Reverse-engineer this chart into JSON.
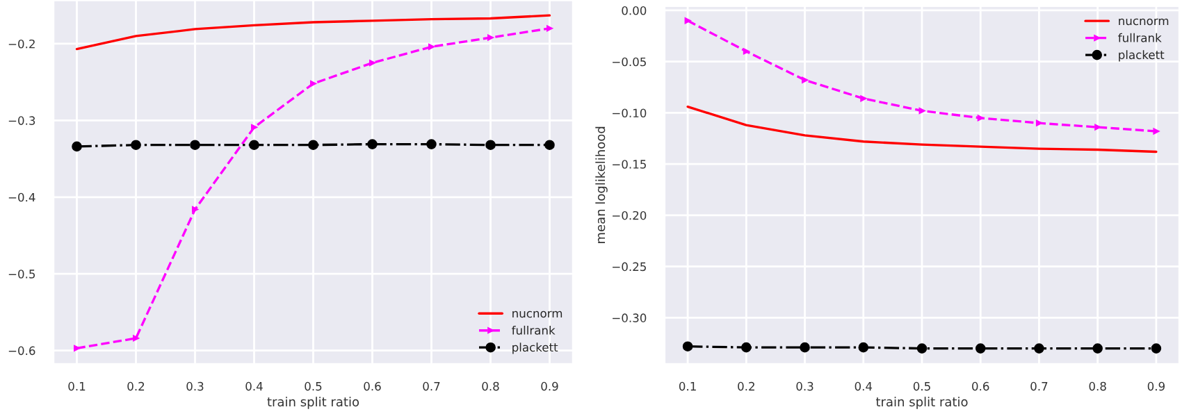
{
  "chart_data": [
    {
      "type": "line",
      "xlabel": "train split ratio",
      "x": [
        0.1,
        0.2,
        0.3,
        0.4,
        0.5,
        0.6,
        0.7,
        0.8,
        0.9
      ],
      "xlim": [
        0.06,
        0.94
      ],
      "xticks": [
        0.1,
        0.2,
        0.3,
        0.4,
        0.5,
        0.6,
        0.7,
        0.8,
        0.9
      ],
      "ylim": [
        -0.618,
        -0.143
      ],
      "yticks": [
        {
          "value": -0.6,
          "label": "−0.6"
        },
        {
          "value": -0.5,
          "label": "−0.5"
        },
        {
          "value": -0.4,
          "label": "−0.4"
        },
        {
          "value": -0.3,
          "label": "−0.3"
        },
        {
          "value": -0.2,
          "label": "−0.2"
        }
      ],
      "grid": true,
      "legend": "bottom right",
      "series": [
        {
          "name": "nucnorm",
          "color": "#ff0000",
          "line_style": "solid",
          "marker": "none",
          "values": [
            -0.207,
            -0.19,
            -0.181,
            -0.176,
            -0.172,
            -0.17,
            -0.168,
            -0.167,
            -0.163
          ]
        },
        {
          "name": "fullrank",
          "color": "#ff00ff",
          "line_style": "dashed",
          "marker": "triangle",
          "values": [
            -0.597,
            -0.584,
            -0.416,
            -0.309,
            -0.252,
            -0.225,
            -0.204,
            -0.192,
            -0.18
          ]
        },
        {
          "name": "plackett",
          "color": "#000000",
          "line_style": "dashdot",
          "marker": "circle",
          "values": [
            -0.334,
            -0.332,
            -0.332,
            -0.332,
            -0.332,
            -0.331,
            -0.331,
            -0.332,
            -0.332
          ]
        }
      ]
    },
    {
      "type": "line",
      "xlabel": "train split ratio",
      "ylabel": "mean loglikelihood",
      "x": [
        0.1,
        0.2,
        0.3,
        0.4,
        0.5,
        0.6,
        0.7,
        0.8,
        0.9
      ],
      "xlim": [
        0.06,
        0.94
      ],
      "xticks": [
        0.1,
        0.2,
        0.3,
        0.4,
        0.5,
        0.6,
        0.7,
        0.8,
        0.9
      ],
      "ylim": [
        -0.3455,
        0.0045
      ],
      "yticks": [
        {
          "value": -0.3,
          "label": "−0.30"
        },
        {
          "value": -0.25,
          "label": "−0.25"
        },
        {
          "value": -0.2,
          "label": "−0.20"
        },
        {
          "value": -0.15,
          "label": "−0.15"
        },
        {
          "value": -0.1,
          "label": "−0.10"
        },
        {
          "value": -0.05,
          "label": "−0.05"
        },
        {
          "value": 0.0,
          "label": "0.00"
        }
      ],
      "grid": true,
      "legend": "top right",
      "series": [
        {
          "name": "nucnorm",
          "color": "#ff0000",
          "line_style": "solid",
          "marker": "none",
          "values": [
            -0.094,
            -0.112,
            -0.122,
            -0.128,
            -0.131,
            -0.133,
            -0.135,
            -0.136,
            -0.138
          ]
        },
        {
          "name": "fullrank",
          "color": "#ff00ff",
          "line_style": "dashed",
          "marker": "triangle",
          "values": [
            -0.01,
            -0.04,
            -0.068,
            -0.086,
            -0.098,
            -0.105,
            -0.11,
            -0.114,
            -0.118
          ]
        },
        {
          "name": "plackett",
          "color": "#000000",
          "line_style": "dashdot",
          "marker": "circle",
          "values": [
            -0.328,
            -0.329,
            -0.329,
            -0.329,
            -0.33,
            -0.33,
            -0.33,
            -0.33,
            -0.33
          ]
        }
      ]
    }
  ]
}
